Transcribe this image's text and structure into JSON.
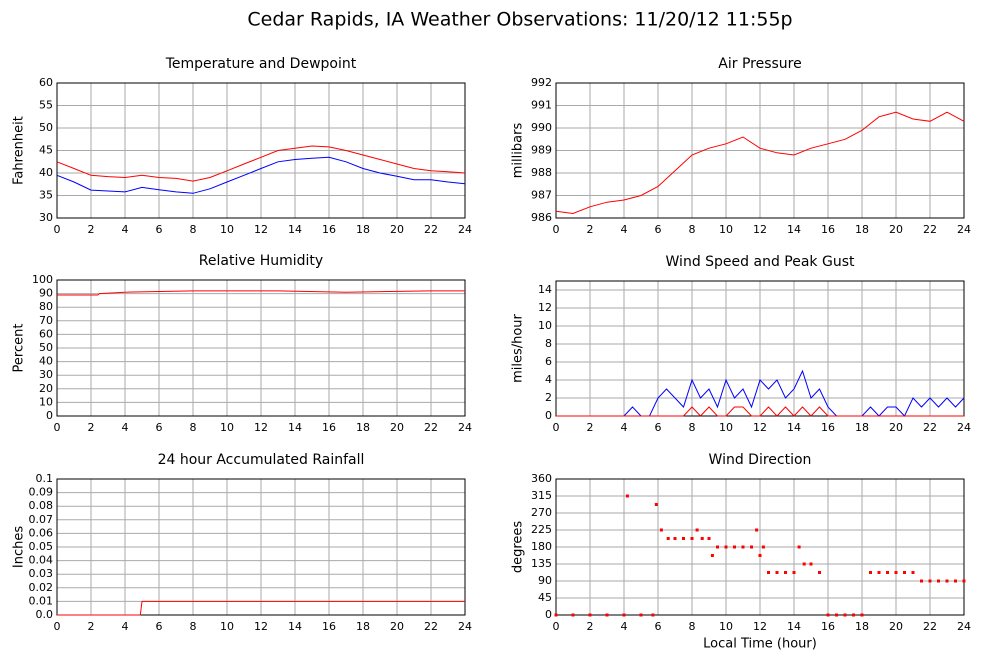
{
  "title": "Cedar Rapids, IA Weather Observations: 11/20/12 11:55p",
  "chart_data": [
    {
      "type": "line",
      "title": "Temperature and Dewpoint",
      "y_label": "Fahrenheit",
      "x": [
        0,
        1,
        2,
        3,
        4,
        5,
        6,
        7,
        8,
        9,
        10,
        11,
        12,
        13,
        14,
        15,
        16,
        17,
        18,
        19,
        20,
        21,
        22,
        23,
        24
      ],
      "series": [
        {
          "color": "#ff0000",
          "values": [
            42.5,
            41,
            39.5,
            39.2,
            39,
            39.5,
            39,
            38.8,
            38.2,
            39,
            40.5,
            42,
            43.5,
            45,
            45.5,
            46,
            45.8,
            45,
            44,
            43,
            42,
            41,
            40.5,
            40.3,
            40
          ]
        },
        {
          "color": "#0000ff",
          "values": [
            39.5,
            38,
            36.2,
            36,
            35.8,
            36.8,
            36.3,
            35.8,
            35.5,
            36.5,
            38,
            39.5,
            41,
            42.5,
            43,
            43.3,
            43.5,
            42.5,
            41,
            40,
            39.3,
            38.5,
            38.5,
            38,
            37.6
          ]
        }
      ],
      "xlim": [
        0,
        24
      ],
      "xticks": [
        0,
        2,
        4,
        6,
        8,
        10,
        12,
        14,
        16,
        18,
        20,
        22,
        24
      ],
      "ylim": [
        30,
        60
      ],
      "yticks": [
        30,
        35,
        40,
        45,
        50,
        55,
        60
      ],
      "grid": true
    },
    {
      "type": "line",
      "title": "Air Pressure",
      "y_label": "millibars",
      "x": [
        0,
        1,
        2,
        3,
        4,
        5,
        6,
        7,
        8,
        9,
        10,
        11,
        12,
        13,
        14,
        15,
        16,
        17,
        18,
        19,
        20,
        21,
        22,
        23,
        24
      ],
      "series": [
        {
          "color": "#ff0000",
          "values": [
            986.3,
            986.2,
            986.5,
            986.7,
            986.8,
            987,
            987.4,
            988.1,
            988.8,
            989.1,
            989.3,
            989.6,
            989.1,
            988.9,
            988.8,
            989.1,
            989.3,
            989.5,
            989.9,
            990.5,
            990.7,
            990.4,
            990.3,
            990.7,
            990.3
          ]
        }
      ],
      "xlim": [
        0,
        24
      ],
      "xticks": [
        0,
        2,
        4,
        6,
        8,
        10,
        12,
        14,
        16,
        18,
        20,
        22,
        24
      ],
      "ylim": [
        986,
        992
      ],
      "yticks": [
        986,
        987,
        988,
        989,
        990,
        991,
        992
      ],
      "grid": true
    },
    {
      "type": "line",
      "title": "Relative Humidity",
      "y_label": "Percent",
      "x": [
        0,
        2.4,
        2.5,
        4,
        8,
        13,
        17,
        22,
        24
      ],
      "series": [
        {
          "color": "#ff0000",
          "values": [
            89,
            89,
            90,
            91,
            92,
            92,
            91,
            92,
            92
          ]
        }
      ],
      "xlim": [
        0,
        24
      ],
      "xticks": [
        0,
        2,
        4,
        6,
        8,
        10,
        12,
        14,
        16,
        18,
        20,
        22,
        24
      ],
      "ylim": [
        0,
        100
      ],
      "yticks": [
        0,
        10,
        20,
        30,
        40,
        50,
        60,
        70,
        80,
        90,
        100
      ],
      "grid": true
    },
    {
      "type": "line",
      "title": "Wind Speed and Peak Gust",
      "y_label": "miles/hour",
      "x": [
        0,
        0.5,
        1,
        1.5,
        2,
        2.5,
        3,
        3.5,
        4,
        4.5,
        5,
        5.5,
        6,
        6.5,
        7,
        7.5,
        8,
        8.5,
        9,
        9.5,
        10,
        10.5,
        11,
        11.5,
        12,
        12.5,
        13,
        13.5,
        14,
        14.5,
        15,
        15.5,
        16,
        16.5,
        17,
        17.5,
        18,
        18.5,
        19,
        19.5,
        20,
        20.5,
        21,
        21.5,
        22,
        22.5,
        23,
        23.5,
        24
      ],
      "series": [
        {
          "color": "#0000ff",
          "values": [
            0,
            0,
            0,
            0,
            0,
            0,
            0,
            0,
            0,
            1,
            0,
            0,
            2,
            3,
            2,
            1,
            4,
            2,
            3,
            1,
            4,
            2,
            3,
            1,
            4,
            3,
            4,
            2,
            3,
            5,
            2,
            3,
            1,
            0,
            0,
            0,
            0,
            1,
            0,
            1,
            1,
            0,
            2,
            1,
            2,
            1,
            2,
            1,
            2
          ]
        },
        {
          "color": "#ff0000",
          "values": [
            0,
            0,
            0,
            0,
            0,
            0,
            0,
            0,
            0,
            0,
            0,
            0,
            0,
            0,
            0,
            0,
            1,
            0,
            1,
            0,
            0,
            1,
            1,
            0,
            0,
            1,
            0,
            1,
            0,
            1,
            0,
            1,
            0,
            0,
            0,
            0,
            0,
            0,
            0,
            0,
            0,
            0,
            0,
            0,
            0,
            0,
            0,
            0,
            0
          ]
        }
      ],
      "xlim": [
        0,
        24
      ],
      "xticks": [
        0,
        2,
        4,
        6,
        8,
        10,
        12,
        14,
        16,
        18,
        20,
        22,
        24
      ],
      "ylim": [
        0,
        15
      ],
      "yticks": [
        0,
        2,
        4,
        6,
        8,
        10,
        12,
        14
      ],
      "grid": true
    },
    {
      "type": "line",
      "title": "24 hour Accumulated Rainfall",
      "y_label": "Inches",
      "x": [
        0,
        4.9,
        5,
        24
      ],
      "series": [
        {
          "color": "#ff0000",
          "values": [
            0,
            0,
            0.01,
            0.01
          ]
        }
      ],
      "xlim": [
        0,
        24
      ],
      "xticks": [
        0,
        2,
        4,
        6,
        8,
        10,
        12,
        14,
        16,
        18,
        20,
        22,
        24
      ],
      "ylim": [
        0,
        0.1
      ],
      "yticks": [
        {
          "value": 0,
          "label": "0.0"
        },
        0.01,
        0.02,
        0.03,
        0.04,
        0.05,
        0.06,
        0.07,
        0.08,
        0.09,
        0.1
      ],
      "grid": true
    },
    {
      "type": "scatter",
      "title": "Wind Direction",
      "y_label": "degrees",
      "x_label": "Local Time (hour)",
      "x": [
        0,
        1,
        2,
        3,
        4,
        4.2,
        5,
        5.7,
        5.9,
        6.2,
        6.6,
        7,
        7.5,
        8,
        8.3,
        8.6,
        9,
        9.2,
        9.5,
        10,
        10.5,
        11,
        11.5,
        11.8,
        12,
        12.2,
        12.5,
        13,
        13.5,
        14,
        14.3,
        14.6,
        15,
        15.5,
        16,
        16.5,
        17,
        17.5,
        18,
        18.5,
        19,
        19.5,
        20,
        20.5,
        21,
        21.5,
        22,
        22.5,
        23,
        23.5,
        24
      ],
      "series": [
        {
          "color": "#ff0000",
          "values": [
            0,
            0,
            0,
            0,
            0,
            315,
            0,
            0,
            292.5,
            225,
            202.5,
            202.5,
            202.5,
            202.5,
            225,
            202.5,
            202.5,
            157.5,
            180,
            180,
            180,
            180,
            180,
            225,
            157.5,
            180,
            112.5,
            112.5,
            112.5,
            112.5,
            180,
            135,
            135,
            112.5,
            0,
            0,
            0,
            0,
            0,
            112.5,
            112.5,
            112.5,
            112.5,
            112.5,
            112.5,
            90,
            90,
            90,
            90,
            90,
            90
          ]
        }
      ],
      "xlim": [
        0,
        24
      ],
      "xticks": [
        0,
        2,
        4,
        6,
        8,
        10,
        12,
        14,
        16,
        18,
        20,
        22,
        24
      ],
      "ylim": [
        0,
        360
      ],
      "yticks": [
        0,
        45,
        90,
        135,
        180,
        225,
        270,
        315,
        360
      ],
      "grid": true
    }
  ]
}
